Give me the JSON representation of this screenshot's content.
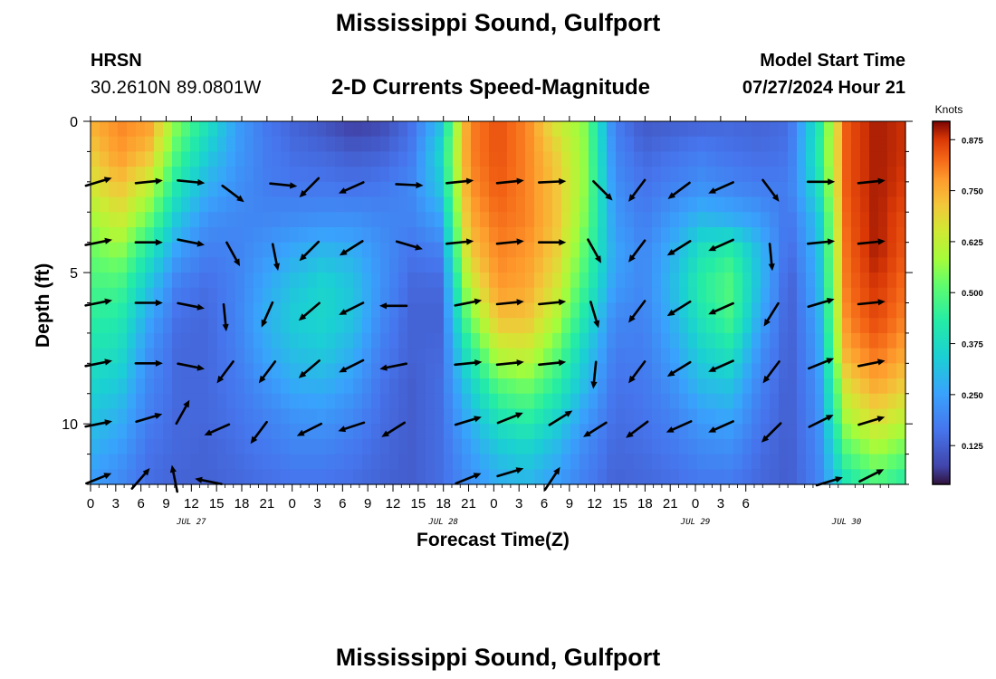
{
  "header": {
    "title": "Mississippi Sound, Gulfport",
    "station": "HRSN",
    "coords": "30.2610N  89.0801W",
    "subtitle": "2-D Currents Speed-Magnitude",
    "model_label": "Model Start Time",
    "model_time": "07/27/2024 Hour 21",
    "bottom_title": "Mississippi Sound, Gulfport"
  },
  "chart_data": {
    "type": "heatmap",
    "title": "2-D Currents Speed-Magnitude",
    "xlabel": "Forecast Time(Z)",
    "ylabel": "Depth (ft)",
    "colorbar_label": "Knots",
    "x_ticks": [
      "0",
      "3",
      "6",
      "9",
      "12",
      "15",
      "18",
      "21",
      "0",
      "3",
      "6",
      "9",
      "12",
      "15",
      "18",
      "21",
      "0",
      "3",
      "6",
      "9",
      "12",
      "15",
      "18",
      "21",
      "0",
      "3",
      "6"
    ],
    "x_date_labels": [
      {
        "label": "JUL 27",
        "hour": 12
      },
      {
        "label": "JUL 28",
        "hour": 42
      },
      {
        "label": "JUL 29",
        "hour": 72
      },
      {
        "label": "JUL 30",
        "hour": 90
      }
    ],
    "xlim": [
      0,
      97
    ],
    "ylim": [
      0,
      12
    ],
    "y_ticks": [
      0,
      5,
      10
    ],
    "y_minor_step": 1,
    "colorbar_range": [
      0.03,
      0.92
    ],
    "colorbar_ticks": [
      "0.125",
      "0.250",
      "0.375",
      "0.500",
      "0.625",
      "0.750",
      "0.875"
    ],
    "colorbar_tick_values": [
      0.125,
      0.25,
      0.375,
      0.5,
      0.625,
      0.75,
      0.875
    ],
    "speed_knots": [
      [
        0.75,
        0.8,
        0.78,
        0.55,
        0.4,
        0.25,
        0.17,
        0.13,
        0.1,
        0.06,
        0.08,
        0.15,
        0.3,
        0.8,
        0.85,
        0.8,
        0.65,
        0.55,
        0.18,
        0.11,
        0.12,
        0.13,
        0.14,
        0.13,
        0.15,
        0.4,
        0.85,
        0.9,
        0.88
      ],
      [
        0.7,
        0.78,
        0.72,
        0.48,
        0.34,
        0.24,
        0.18,
        0.15,
        0.14,
        0.12,
        0.13,
        0.17,
        0.36,
        0.8,
        0.85,
        0.8,
        0.7,
        0.56,
        0.2,
        0.14,
        0.16,
        0.18,
        0.16,
        0.15,
        0.16,
        0.42,
        0.85,
        0.9,
        0.88
      ],
      [
        0.65,
        0.72,
        0.62,
        0.4,
        0.28,
        0.22,
        0.18,
        0.17,
        0.17,
        0.16,
        0.17,
        0.2,
        0.32,
        0.78,
        0.84,
        0.8,
        0.72,
        0.56,
        0.22,
        0.16,
        0.19,
        0.22,
        0.2,
        0.18,
        0.18,
        0.38,
        0.85,
        0.9,
        0.87
      ],
      [
        0.58,
        0.65,
        0.52,
        0.32,
        0.22,
        0.2,
        0.2,
        0.21,
        0.22,
        0.22,
        0.2,
        0.19,
        0.25,
        0.75,
        0.82,
        0.8,
        0.72,
        0.54,
        0.24,
        0.18,
        0.24,
        0.3,
        0.28,
        0.24,
        0.16,
        0.32,
        0.84,
        0.9,
        0.85
      ],
      [
        0.52,
        0.56,
        0.4,
        0.24,
        0.18,
        0.19,
        0.23,
        0.27,
        0.3,
        0.28,
        0.22,
        0.16,
        0.18,
        0.7,
        0.8,
        0.78,
        0.7,
        0.5,
        0.26,
        0.2,
        0.28,
        0.4,
        0.45,
        0.3,
        0.14,
        0.3,
        0.83,
        0.9,
        0.84
      ],
      [
        0.48,
        0.48,
        0.32,
        0.18,
        0.15,
        0.19,
        0.26,
        0.32,
        0.36,
        0.32,
        0.22,
        0.14,
        0.14,
        0.62,
        0.78,
        0.76,
        0.66,
        0.46,
        0.24,
        0.2,
        0.3,
        0.44,
        0.5,
        0.3,
        0.12,
        0.28,
        0.82,
        0.88,
        0.82
      ],
      [
        0.44,
        0.42,
        0.26,
        0.15,
        0.14,
        0.19,
        0.28,
        0.34,
        0.36,
        0.32,
        0.2,
        0.13,
        0.13,
        0.52,
        0.72,
        0.72,
        0.6,
        0.4,
        0.2,
        0.19,
        0.28,
        0.4,
        0.48,
        0.26,
        0.12,
        0.26,
        0.8,
        0.86,
        0.8
      ],
      [
        0.4,
        0.38,
        0.22,
        0.14,
        0.14,
        0.18,
        0.26,
        0.31,
        0.33,
        0.28,
        0.18,
        0.13,
        0.14,
        0.42,
        0.62,
        0.64,
        0.52,
        0.34,
        0.18,
        0.18,
        0.25,
        0.35,
        0.4,
        0.22,
        0.12,
        0.24,
        0.76,
        0.82,
        0.76
      ],
      [
        0.36,
        0.33,
        0.2,
        0.14,
        0.14,
        0.17,
        0.22,
        0.27,
        0.28,
        0.24,
        0.16,
        0.12,
        0.15,
        0.34,
        0.5,
        0.54,
        0.44,
        0.3,
        0.16,
        0.17,
        0.22,
        0.3,
        0.32,
        0.19,
        0.12,
        0.22,
        0.68,
        0.76,
        0.7
      ],
      [
        0.32,
        0.28,
        0.18,
        0.14,
        0.14,
        0.16,
        0.19,
        0.22,
        0.23,
        0.2,
        0.15,
        0.12,
        0.15,
        0.28,
        0.4,
        0.44,
        0.36,
        0.24,
        0.15,
        0.16,
        0.19,
        0.24,
        0.26,
        0.17,
        0.12,
        0.21,
        0.6,
        0.68,
        0.62
      ],
      [
        0.28,
        0.24,
        0.16,
        0.14,
        0.13,
        0.15,
        0.17,
        0.19,
        0.19,
        0.17,
        0.14,
        0.12,
        0.15,
        0.24,
        0.32,
        0.35,
        0.29,
        0.2,
        0.14,
        0.15,
        0.17,
        0.2,
        0.21,
        0.15,
        0.12,
        0.2,
        0.5,
        0.58,
        0.52
      ],
      [
        0.24,
        0.2,
        0.15,
        0.13,
        0.13,
        0.14,
        0.15,
        0.16,
        0.16,
        0.15,
        0.13,
        0.12,
        0.15,
        0.21,
        0.27,
        0.29,
        0.24,
        0.18,
        0.13,
        0.14,
        0.15,
        0.17,
        0.17,
        0.14,
        0.12,
        0.19,
        0.4,
        0.48,
        0.42
      ]
    ],
    "current_arrows": [
      {
        "hour": 1,
        "depth": 2.0,
        "dx": 1.0,
        "dy": -0.3
      },
      {
        "hour": 7,
        "depth": 2.0,
        "dx": 1.0,
        "dy": -0.1
      },
      {
        "hour": 12,
        "depth": 2.0,
        "dx": 1.0,
        "dy": 0.1
      },
      {
        "hour": 17,
        "depth": 2.4,
        "dx": 0.8,
        "dy": 0.6
      },
      {
        "hour": 23,
        "depth": 2.1,
        "dx": 1.0,
        "dy": 0.1
      },
      {
        "hour": 26,
        "depth": 2.2,
        "dx": -0.7,
        "dy": 0.7
      },
      {
        "hour": 31,
        "depth": 2.2,
        "dx": -0.9,
        "dy": 0.4
      },
      {
        "hour": 38,
        "depth": 2.1,
        "dx": 1.0,
        "dy": 0.05
      },
      {
        "hour": 44,
        "depth": 2.0,
        "dx": 1.0,
        "dy": -0.1
      },
      {
        "hour": 50,
        "depth": 2.0,
        "dx": 1.0,
        "dy": -0.1
      },
      {
        "hour": 55,
        "depth": 2.0,
        "dx": 1.0,
        "dy": -0.05
      },
      {
        "hour": 61,
        "depth": 2.3,
        "dx": 0.7,
        "dy": 0.7
      },
      {
        "hour": 65,
        "depth": 2.3,
        "dx": -0.6,
        "dy": 0.8
      },
      {
        "hour": 70,
        "depth": 2.3,
        "dx": -0.8,
        "dy": 0.6
      },
      {
        "hour": 75,
        "depth": 2.2,
        "dx": -0.9,
        "dy": 0.4
      },
      {
        "hour": 81,
        "depth": 2.3,
        "dx": 0.6,
        "dy": 0.8
      },
      {
        "hour": 87,
        "depth": 2.0,
        "dx": 1.0,
        "dy": 0.0
      },
      {
        "hour": 93,
        "depth": 2.0,
        "dx": 1.0,
        "dy": -0.1
      },
      {
        "hour": 1,
        "depth": 4.0,
        "dx": 1.0,
        "dy": -0.2
      },
      {
        "hour": 7,
        "depth": 4.0,
        "dx": 1.0,
        "dy": 0.0
      },
      {
        "hour": 12,
        "depth": 4.0,
        "dx": 1.0,
        "dy": 0.2
      },
      {
        "hour": 17,
        "depth": 4.4,
        "dx": 0.5,
        "dy": 0.9
      },
      {
        "hour": 22,
        "depth": 4.5,
        "dx": 0.2,
        "dy": 1.0
      },
      {
        "hour": 26,
        "depth": 4.3,
        "dx": -0.7,
        "dy": 0.7
      },
      {
        "hour": 31,
        "depth": 4.2,
        "dx": -0.8,
        "dy": 0.5
      },
      {
        "hour": 38,
        "depth": 4.1,
        "dx": 1.0,
        "dy": 0.3
      },
      {
        "hour": 44,
        "depth": 4.0,
        "dx": 1.0,
        "dy": -0.1
      },
      {
        "hour": 50,
        "depth": 4.0,
        "dx": 1.0,
        "dy": -0.1
      },
      {
        "hour": 55,
        "depth": 4.0,
        "dx": 1.0,
        "dy": 0.0
      },
      {
        "hour": 60,
        "depth": 4.3,
        "dx": 0.5,
        "dy": 0.9
      },
      {
        "hour": 65,
        "depth": 4.3,
        "dx": -0.6,
        "dy": 0.8
      },
      {
        "hour": 70,
        "depth": 4.2,
        "dx": -0.8,
        "dy": 0.5
      },
      {
        "hour": 75,
        "depth": 4.1,
        "dx": -0.9,
        "dy": 0.4
      },
      {
        "hour": 81,
        "depth": 4.5,
        "dx": 0.1,
        "dy": 1.0
      },
      {
        "hour": 87,
        "depth": 4.0,
        "dx": 1.0,
        "dy": -0.1
      },
      {
        "hour": 93,
        "depth": 4.0,
        "dx": 1.0,
        "dy": -0.1
      },
      {
        "hour": 1,
        "depth": 6.0,
        "dx": 1.0,
        "dy": -0.2
      },
      {
        "hour": 7,
        "depth": 6.0,
        "dx": 1.0,
        "dy": 0.0
      },
      {
        "hour": 12,
        "depth": 6.1,
        "dx": 1.0,
        "dy": 0.2
      },
      {
        "hour": 16,
        "depth": 6.5,
        "dx": 0.1,
        "dy": 1.0
      },
      {
        "hour": 21,
        "depth": 6.4,
        "dx": -0.4,
        "dy": 0.9
      },
      {
        "hour": 26,
        "depth": 6.3,
        "dx": -0.7,
        "dy": 0.6
      },
      {
        "hour": 31,
        "depth": 6.2,
        "dx": -0.8,
        "dy": 0.4
      },
      {
        "hour": 36,
        "depth": 6.1,
        "dx": -1.0,
        "dy": 0.0
      },
      {
        "hour": 45,
        "depth": 6.0,
        "dx": 1.0,
        "dy": -0.2
      },
      {
        "hour": 50,
        "depth": 6.0,
        "dx": 1.0,
        "dy": -0.1
      },
      {
        "hour": 55,
        "depth": 6.0,
        "dx": 1.0,
        "dy": -0.1
      },
      {
        "hour": 60,
        "depth": 6.4,
        "dx": 0.3,
        "dy": 1.0
      },
      {
        "hour": 65,
        "depth": 6.3,
        "dx": -0.6,
        "dy": 0.8
      },
      {
        "hour": 70,
        "depth": 6.2,
        "dx": -0.8,
        "dy": 0.5
      },
      {
        "hour": 75,
        "depth": 6.2,
        "dx": -0.9,
        "dy": 0.4
      },
      {
        "hour": 81,
        "depth": 6.4,
        "dx": -0.5,
        "dy": 0.8
      },
      {
        "hour": 87,
        "depth": 6.0,
        "dx": 1.0,
        "dy": -0.3
      },
      {
        "hour": 93,
        "depth": 6.0,
        "dx": 1.0,
        "dy": -0.1
      },
      {
        "hour": 1,
        "depth": 8.0,
        "dx": 1.0,
        "dy": -0.2
      },
      {
        "hour": 7,
        "depth": 8.0,
        "dx": 1.0,
        "dy": 0.0
      },
      {
        "hour": 12,
        "depth": 8.1,
        "dx": 1.0,
        "dy": 0.2
      },
      {
        "hour": 16,
        "depth": 8.3,
        "dx": -0.6,
        "dy": 0.8
      },
      {
        "hour": 21,
        "depth": 8.3,
        "dx": -0.6,
        "dy": 0.8
      },
      {
        "hour": 26,
        "depth": 8.2,
        "dx": -0.7,
        "dy": 0.6
      },
      {
        "hour": 31,
        "depth": 8.1,
        "dx": -0.8,
        "dy": 0.4
      },
      {
        "hour": 36,
        "depth": 8.1,
        "dx": -1.0,
        "dy": 0.2
      },
      {
        "hour": 45,
        "depth": 8.0,
        "dx": 1.0,
        "dy": -0.1
      },
      {
        "hour": 50,
        "depth": 8.0,
        "dx": 1.0,
        "dy": -0.1
      },
      {
        "hour": 55,
        "depth": 8.0,
        "dx": 1.0,
        "dy": -0.1
      },
      {
        "hour": 60,
        "depth": 8.4,
        "dx": -0.1,
        "dy": 1.0
      },
      {
        "hour": 65,
        "depth": 8.3,
        "dx": -0.6,
        "dy": 0.8
      },
      {
        "hour": 70,
        "depth": 8.2,
        "dx": -0.8,
        "dy": 0.5
      },
      {
        "hour": 75,
        "depth": 8.1,
        "dx": -0.9,
        "dy": 0.4
      },
      {
        "hour": 81,
        "depth": 8.3,
        "dx": -0.6,
        "dy": 0.8
      },
      {
        "hour": 87,
        "depth": 8.0,
        "dx": 1.0,
        "dy": -0.4
      },
      {
        "hour": 93,
        "depth": 8.0,
        "dx": 1.0,
        "dy": -0.2
      },
      {
        "hour": 1,
        "depth": 10.0,
        "dx": 1.0,
        "dy": -0.2
      },
      {
        "hour": 7,
        "depth": 9.8,
        "dx": 1.0,
        "dy": -0.3
      },
      {
        "hour": 11,
        "depth": 9.6,
        "dx": 0.5,
        "dy": -0.9
      },
      {
        "hour": 15,
        "depth": 10.2,
        "dx": -0.9,
        "dy": 0.4
      },
      {
        "hour": 20,
        "depth": 10.3,
        "dx": -0.6,
        "dy": 0.8
      },
      {
        "hour": 26,
        "depth": 10.2,
        "dx": -0.8,
        "dy": 0.4
      },
      {
        "hour": 31,
        "depth": 10.1,
        "dx": -0.9,
        "dy": 0.3
      },
      {
        "hour": 36,
        "depth": 10.2,
        "dx": -0.8,
        "dy": 0.5
      },
      {
        "hour": 45,
        "depth": 9.9,
        "dx": 1.0,
        "dy": -0.3
      },
      {
        "hour": 50,
        "depth": 9.8,
        "dx": 1.0,
        "dy": -0.4
      },
      {
        "hour": 56,
        "depth": 9.8,
        "dx": 0.8,
        "dy": -0.5
      },
      {
        "hour": 60,
        "depth": 10.2,
        "dx": -0.8,
        "dy": 0.5
      },
      {
        "hour": 65,
        "depth": 10.2,
        "dx": -0.8,
        "dy": 0.6
      },
      {
        "hour": 70,
        "depth": 10.1,
        "dx": -0.9,
        "dy": 0.4
      },
      {
        "hour": 75,
        "depth": 10.1,
        "dx": -0.9,
        "dy": 0.4
      },
      {
        "hour": 81,
        "depth": 10.3,
        "dx": -0.7,
        "dy": 0.7
      },
      {
        "hour": 87,
        "depth": 9.9,
        "dx": 1.0,
        "dy": -0.5
      },
      {
        "hour": 93,
        "depth": 9.9,
        "dx": 1.0,
        "dy": -0.3
      },
      {
        "hour": 1,
        "depth": 11.8,
        "dx": 1.0,
        "dy": -0.4
      },
      {
        "hour": 6,
        "depth": 11.8,
        "dx": 0.7,
        "dy": -0.8
      },
      {
        "hour": 10,
        "depth": 11.8,
        "dx": -0.2,
        "dy": -1.0
      },
      {
        "hour": 14,
        "depth": 11.9,
        "dx": -1.0,
        "dy": -0.2
      },
      {
        "hour": 45,
        "depth": 11.8,
        "dx": 1.0,
        "dy": -0.4
      },
      {
        "hour": 50,
        "depth": 11.6,
        "dx": 1.0,
        "dy": -0.3
      },
      {
        "hour": 55,
        "depth": 11.8,
        "dx": 0.6,
        "dy": -0.9
      },
      {
        "hour": 88,
        "depth": 11.9,
        "dx": 1.0,
        "dy": -0.3
      },
      {
        "hour": 93,
        "depth": 11.7,
        "dx": 1.0,
        "dy": -0.5
      }
    ]
  }
}
